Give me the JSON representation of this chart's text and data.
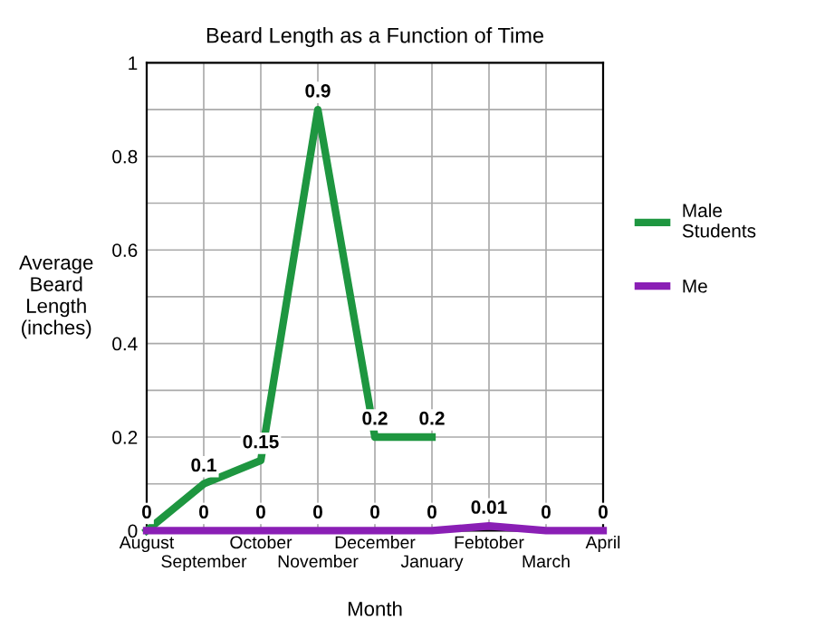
{
  "chart_data": {
    "type": "line",
    "title": "Beard Length as a Function of Time",
    "xlabel": "Month",
    "ylabel": "Average Beard Length (inches)",
    "categories": [
      "August",
      "September",
      "October",
      "November",
      "December",
      "January",
      "Febtober",
      "March",
      "April"
    ],
    "series": [
      {
        "name": "Male Students",
        "color": "#1e9640",
        "values": [
          0,
          0.1,
          0.15,
          0.9,
          0.2,
          0.2,
          null,
          null,
          null
        ],
        "value_labels": [
          null,
          "0.1",
          "0.15",
          "0.9",
          "0.2",
          "0.2",
          null,
          null,
          null
        ]
      },
      {
        "name": "Me",
        "color": "#8a1fb5",
        "values": [
          0,
          0,
          0,
          0,
          0,
          0,
          0.01,
          0,
          0
        ]
      }
    ],
    "ylim": [
      0,
      1
    ],
    "yticks": [
      0,
      {
        "value": 0.1,
        "label": null
      },
      0.2,
      {
        "value": 0.3,
        "label": null
      },
      0.4,
      {
        "value": 0.5,
        "label": null
      },
      0.6,
      {
        "value": 0.7,
        "label": null
      },
      0.8,
      {
        "value": 0.9,
        "label": null
      },
      1
    ],
    "grid": true,
    "legend": "right",
    "data_labels": true,
    "marker": "none",
    "line_style": "solid"
  }
}
